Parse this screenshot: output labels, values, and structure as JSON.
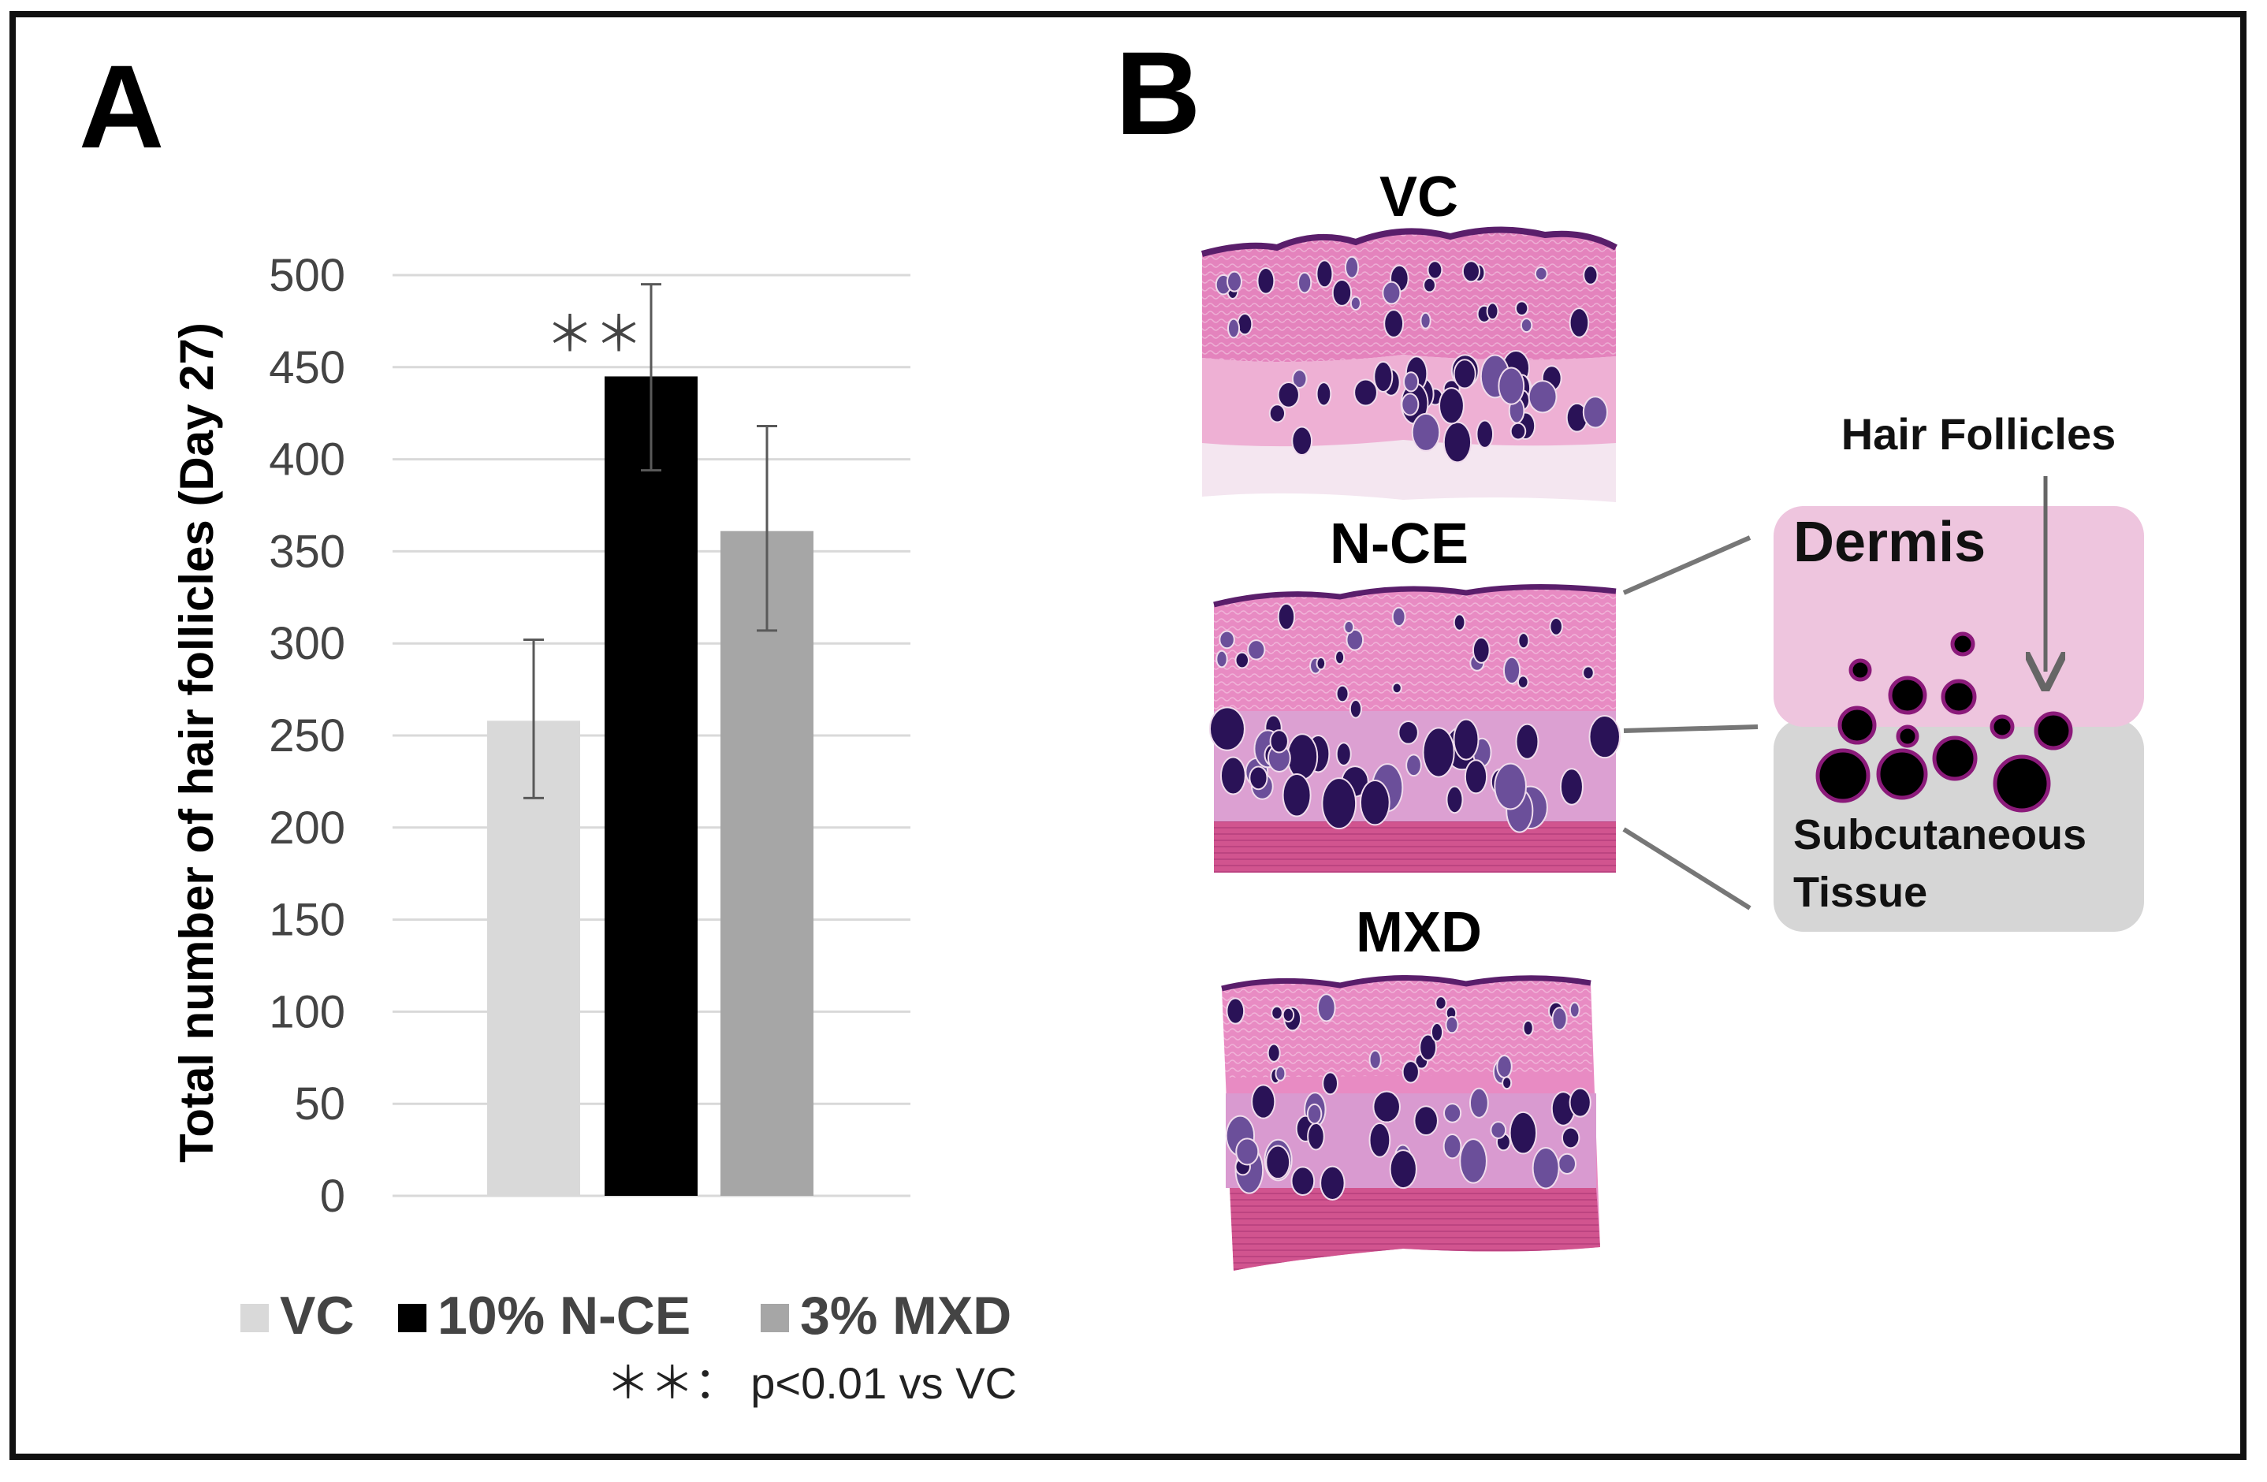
{
  "panel_a": {
    "letter": "A"
  },
  "panel_b": {
    "letter": "B",
    "samples": [
      "VC",
      "N-CE",
      "MXD"
    ],
    "diagram": {
      "hair_follicles_label": "Hair Follicles",
      "dermis_label": "Dermis",
      "subcutaneous_label_line1": "Subcutaneous",
      "subcutaneous_label_line2": "Tissue",
      "dermis_color": "#eec5de",
      "subcutaneous_color": "#d6d6d6",
      "follicle_color": "#000000",
      "follicle_ring_color": "#8b1a7a"
    }
  },
  "chart_data": {
    "type": "bar",
    "ylabel": "Total number of hair follicles (Day 27)",
    "ylim": [
      0,
      500
    ],
    "y_ticks": [
      0,
      50,
      100,
      150,
      200,
      250,
      300,
      350,
      400,
      450,
      500
    ],
    "grid": true,
    "categories": [
      "VC",
      "10% N-CE",
      "3% MXD"
    ],
    "values": [
      258,
      445,
      361
    ],
    "error_bars": [
      {
        "lower": 216,
        "upper": 302
      },
      {
        "lower": 394,
        "upper": 495
      },
      {
        "lower": 307,
        "upper": 418
      }
    ],
    "colors": [
      "#d9d9d9",
      "#000000",
      "#a6a6a6"
    ],
    "significance": [
      {
        "category": "10% N-CE",
        "label": "＊＊"
      }
    ],
    "legend": {
      "placement": "bottom",
      "entries": [
        "VC",
        "10% N-CE",
        "3% MXD"
      ]
    },
    "note": "＊＊： p<0.01 vs VC"
  }
}
